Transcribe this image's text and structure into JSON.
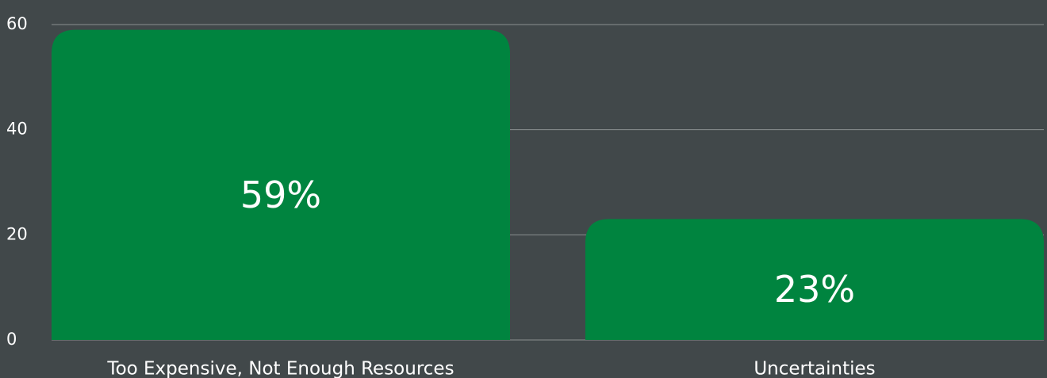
{
  "chart_data": {
    "type": "bar",
    "categories": [
      "Too Expensive, Not Enough Resources",
      "Uncertainties"
    ],
    "values": [
      59,
      23
    ],
    "value_labels": [
      "59%",
      "23%"
    ],
    "color": "#00843f",
    "ylim": [
      0,
      60
    ],
    "yticks": [
      0,
      20,
      40,
      60
    ],
    "grid": true
  }
}
